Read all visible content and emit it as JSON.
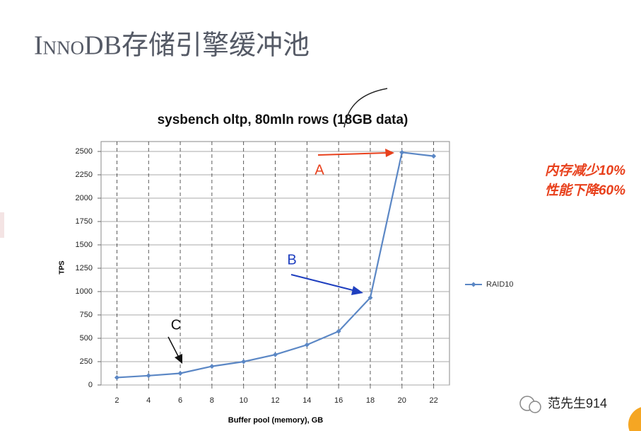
{
  "slide_title": "InnoDB存储引擎缓冲池",
  "side_note": [
    "内存减少10%",
    "性能下降60%"
  ],
  "watermark": "范先生914",
  "chart_data": {
    "type": "line",
    "title": "sysbench oltp, 80mln rows (18GB data)",
    "x_label": "Buffer pool (memory), GB",
    "y_label": "TPS",
    "x": [
      2,
      4,
      6,
      8,
      10,
      12,
      14,
      16,
      18,
      20,
      22
    ],
    "series": [
      {
        "name": "RAID10",
        "color": "#5b87c5",
        "values": [
          80,
          100,
          125,
          200,
          250,
          325,
          430,
          575,
          935,
          2490,
          2450
        ]
      }
    ],
    "xlim": [
      1,
      23
    ],
    "xticks": [
      2,
      4,
      6,
      8,
      10,
      12,
      14,
      16,
      18,
      20,
      22
    ],
    "ylim": [
      0,
      2500
    ],
    "yticks": [
      0,
      250,
      500,
      750,
      1000,
      1250,
      1500,
      1750,
      2000,
      2250,
      2500
    ],
    "grid": true,
    "legend": "right",
    "annotations": [
      "A",
      "B",
      "C"
    ]
  }
}
